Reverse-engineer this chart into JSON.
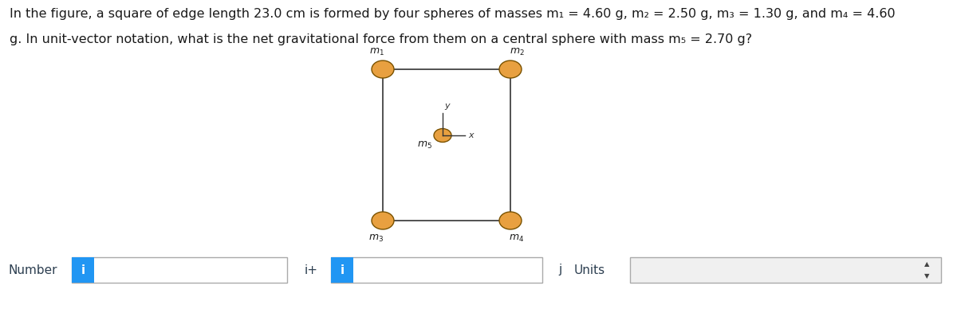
{
  "title_line1": "In the figure, a square of edge length 23.0 cm is formed by four spheres of masses m₁ = 4.60 g, m₂ = 2.50 g, m₃ = 1.30 g, and m₄ = 4.60",
  "title_line2": "g. In unit-vector notation, what is the net gravitational force from them on a central sphere with mass m₅ = 2.70 g?",
  "sphere_color": "#E8A040",
  "sphere_edge_color": "#7a5200",
  "line_color": "#333333",
  "background_color": "#ffffff",
  "blue_tab_color": "#2196F3",
  "number_label": "Number",
  "iplus_label": "i+",
  "j_label": "j",
  "units_label": "Units",
  "text_color": "#2c3e50",
  "font_size_title": 11.5
}
